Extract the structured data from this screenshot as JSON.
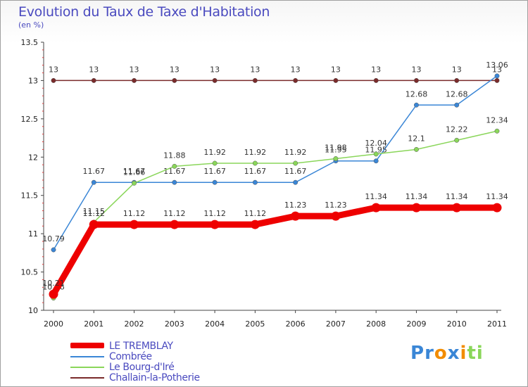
{
  "chart_data": {
    "type": "line",
    "title": "Evolution du Taux de Taxe d'Habitation",
    "subtitle": "(en %)",
    "categories": [
      "2000",
      "2001",
      "2002",
      "2003",
      "2004",
      "2005",
      "2006",
      "2007",
      "2008",
      "2009",
      "2010",
      "2011"
    ],
    "ylim": [
      10,
      13.5
    ],
    "yticks": [
      "10",
      "10.5",
      "11",
      "11.5",
      "12",
      "12.5",
      "13",
      "13.5"
    ],
    "grid": false,
    "legend_position": "bottom-left",
    "series": [
      {
        "name": "Challain-la-Potherie",
        "color": "#7a2a2a",
        "values": [
          13,
          13,
          13,
          13,
          13,
          13,
          13,
          13,
          13,
          13,
          13,
          13
        ],
        "labels": [
          "13",
          "13",
          "13",
          "13",
          "13",
          "13",
          "13",
          "13",
          "13",
          "13",
          "13",
          "13"
        ]
      },
      {
        "name": "Combrée",
        "color": "#3a86d6",
        "values": [
          10.79,
          11.67,
          11.67,
          11.67,
          11.67,
          11.67,
          11.67,
          11.95,
          11.95,
          12.68,
          12.68,
          13.06
        ],
        "labels": [
          "10.79",
          "11.67",
          "11.67",
          "11.67",
          "11.67",
          "11.67",
          "11.67",
          "11.95",
          "11.95",
          "12.68",
          "12.68",
          "13.06"
        ]
      },
      {
        "name": "Le Bourg-d'Iré",
        "color": "#8ad65a",
        "values": [
          10.16,
          11.15,
          11.66,
          11.88,
          11.92,
          11.92,
          11.92,
          11.98,
          12.04,
          12.1,
          12.22,
          12.34
        ],
        "labels": [
          "10.16",
          "11.15",
          "11.66",
          "11.88",
          "11.92",
          "11.92",
          "11.92",
          "11.98",
          "12.04",
          "12.1",
          "12.22",
          "12.34"
        ]
      },
      {
        "name": "LE TREMBLAY",
        "color": "#ee0000",
        "values": [
          10.21,
          11.12,
          11.12,
          11.12,
          11.12,
          11.12,
          11.23,
          11.23,
          11.34,
          11.34,
          11.34,
          11.34
        ],
        "labels": [
          "10.21",
          "11.12",
          "11.12",
          "11.12",
          "11.12",
          "11.12",
          "11.23",
          "11.23",
          "11.34",
          "11.34",
          "11.34",
          "11.34"
        ]
      }
    ]
  },
  "legend": {
    "items": [
      {
        "label": "LE TREMBLAY",
        "color": "#ee0000"
      },
      {
        "label": "Combrée",
        "color": "#3a86d6"
      },
      {
        "label": "Le Bourg-d'Iré",
        "color": "#8ad65a"
      },
      {
        "label": "Challain-la-Potherie",
        "color": "#7a2a2a"
      }
    ]
  },
  "logo": {
    "letters": [
      "P",
      "r",
      "o",
      "x",
      "i",
      "t",
      "i"
    ],
    "colors": [
      "#3a86d6",
      "#3a86d6",
      "#f28c00",
      "#3a86d6",
      "#f28c00",
      "#8ad65a",
      "#8ad65a"
    ]
  }
}
